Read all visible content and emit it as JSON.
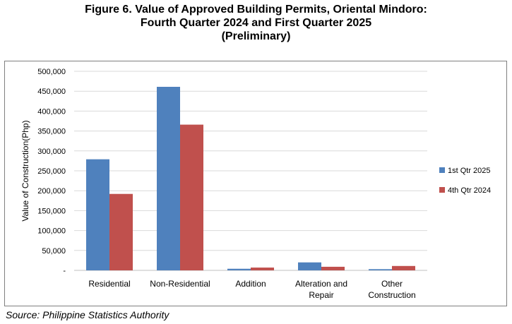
{
  "title": {
    "line1": "Figure 6.  Value of Approved Building Permits, Oriental Mindoro:",
    "line2": "Fourth Quarter 2024 and First Quarter 2025",
    "line3": "(Preliminary)"
  },
  "source": "Source: Philippine Statistics Authority",
  "chart_data": {
    "type": "bar",
    "categories": [
      [
        "Residential"
      ],
      [
        "Non-Residential"
      ],
      [
        "Addition"
      ],
      [
        "Alteration and",
        "Repair"
      ],
      [
        "Other",
        "Construction"
      ]
    ],
    "series": [
      {
        "name": "1st Qtr 2025",
        "color": "#4f81bd",
        "values": [
          279000,
          461000,
          4000,
          20000,
          3000
        ]
      },
      {
        "name": "4th Qtr 2024",
        "color": "#c0504d",
        "values": [
          192000,
          366000,
          7000,
          9000,
          11000
        ]
      }
    ],
    "ylabel": "Value of Construction(Php)",
    "ylim": [
      0,
      500000
    ],
    "yticks": [
      "-",
      "50,000",
      "100,000",
      "150,000",
      "200,000",
      "250,000",
      "300,000",
      "350,000",
      "400,000",
      "450,000",
      "500,000"
    ],
    "grid": true,
    "legend": "right"
  }
}
